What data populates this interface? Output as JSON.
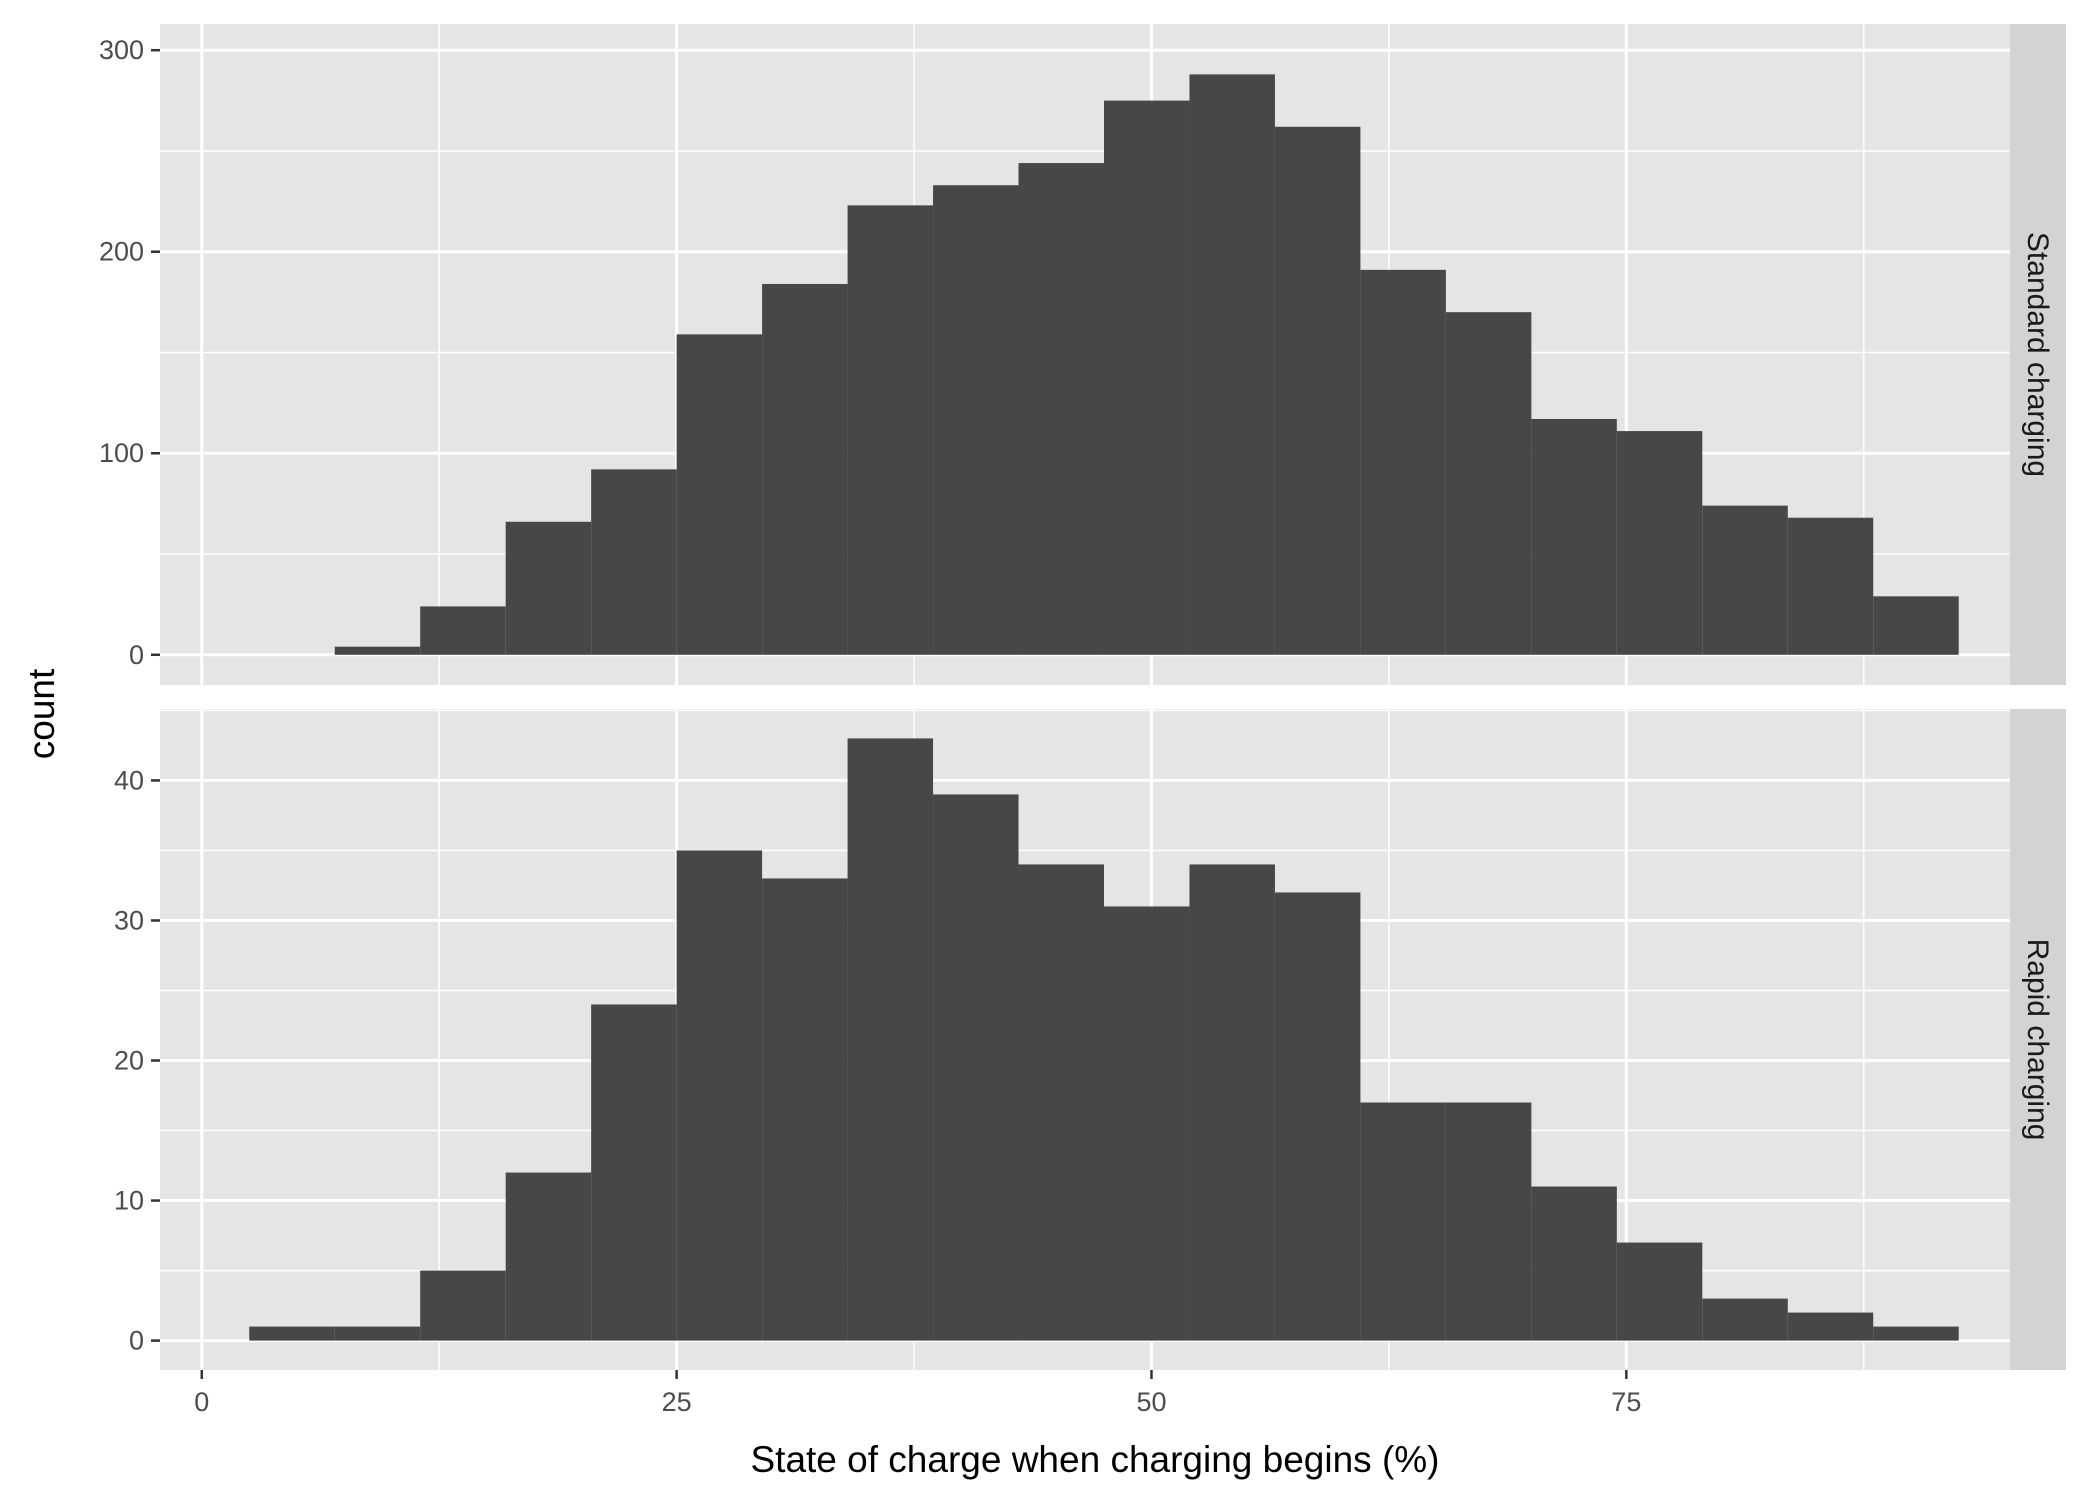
{
  "chart_data": {
    "type": "bar",
    "xlabel": "State of charge when charging begins (%)",
    "ylabel": "count",
    "x_ticks": [
      0,
      25,
      50,
      75
    ],
    "xlim": [
      -2.2,
      95.2
    ],
    "bin_width": 4.5,
    "grid": true,
    "facet_position": "right",
    "colors": {
      "panel_background": "#e5e5e5",
      "grid": "#ffffff",
      "bar": "#474747",
      "strip": "#d3d3d3",
      "tick_label": "#4d4d4d"
    },
    "panels": [
      {
        "label": "Standard charging",
        "ylim": [
          -15,
          313
        ],
        "y_ticks": [
          0,
          100,
          200,
          300
        ],
        "bins": [
          {
            "x": [
              7.0,
              11.5
            ],
            "count": 4
          },
          {
            "x": [
              11.5,
              16.0
            ],
            "count": 24
          },
          {
            "x": [
              16.0,
              20.5
            ],
            "count": 66
          },
          {
            "x": [
              20.5,
              25.0
            ],
            "count": 92
          },
          {
            "x": [
              25.0,
              29.5
            ],
            "count": 159
          },
          {
            "x": [
              29.5,
              34.0
            ],
            "count": 184
          },
          {
            "x": [
              34.0,
              38.5
            ],
            "count": 223
          },
          {
            "x": [
              38.5,
              43.0
            ],
            "count": 233
          },
          {
            "x": [
              43.0,
              47.5
            ],
            "count": 244
          },
          {
            "x": [
              47.5,
              52.0
            ],
            "count": 275
          },
          {
            "x": [
              52.0,
              56.5
            ],
            "count": 288
          },
          {
            "x": [
              56.5,
              61.0
            ],
            "count": 262
          },
          {
            "x": [
              61.0,
              65.5
            ],
            "count": 191
          },
          {
            "x": [
              65.5,
              70.0
            ],
            "count": 170
          },
          {
            "x": [
              70.0,
              74.5
            ],
            "count": 117
          },
          {
            "x": [
              74.5,
              79.0
            ],
            "count": 111
          },
          {
            "x": [
              79.0,
              83.5
            ],
            "count": 74
          },
          {
            "x": [
              83.5,
              88.0
            ],
            "count": 68
          },
          {
            "x": [
              88.0,
              92.5
            ],
            "count": 29
          }
        ]
      },
      {
        "label": "Rapid charging",
        "ylim": [
          -2.1,
          45.1
        ],
        "y_ticks": [
          0,
          10,
          20,
          30,
          40
        ],
        "bins": [
          {
            "x": [
              2.5,
              7.0
            ],
            "count": 1
          },
          {
            "x": [
              7.0,
              11.5
            ],
            "count": 1
          },
          {
            "x": [
              11.5,
              16.0
            ],
            "count": 5
          },
          {
            "x": [
              16.0,
              20.5
            ],
            "count": 12
          },
          {
            "x": [
              20.5,
              25.0
            ],
            "count": 24
          },
          {
            "x": [
              25.0,
              29.5
            ],
            "count": 35
          },
          {
            "x": [
              29.5,
              34.0
            ],
            "count": 33
          },
          {
            "x": [
              34.0,
              38.5
            ],
            "count": 43
          },
          {
            "x": [
              38.5,
              43.0
            ],
            "count": 39
          },
          {
            "x": [
              43.0,
              47.5
            ],
            "count": 34
          },
          {
            "x": [
              47.5,
              52.0
            ],
            "count": 31
          },
          {
            "x": [
              52.0,
              56.5
            ],
            "count": 34
          },
          {
            "x": [
              56.5,
              61.0
            ],
            "count": 32
          },
          {
            "x": [
              61.0,
              65.5
            ],
            "count": 17
          },
          {
            "x": [
              65.5,
              70.0
            ],
            "count": 17
          },
          {
            "x": [
              70.0,
              74.5
            ],
            "count": 11
          },
          {
            "x": [
              74.5,
              79.0
            ],
            "count": 7
          },
          {
            "x": [
              79.0,
              83.5
            ],
            "count": 3
          },
          {
            "x": [
              83.5,
              88.0
            ],
            "count": 2
          },
          {
            "x": [
              88.0,
              92.5
            ],
            "count": 1
          }
        ]
      }
    ]
  }
}
